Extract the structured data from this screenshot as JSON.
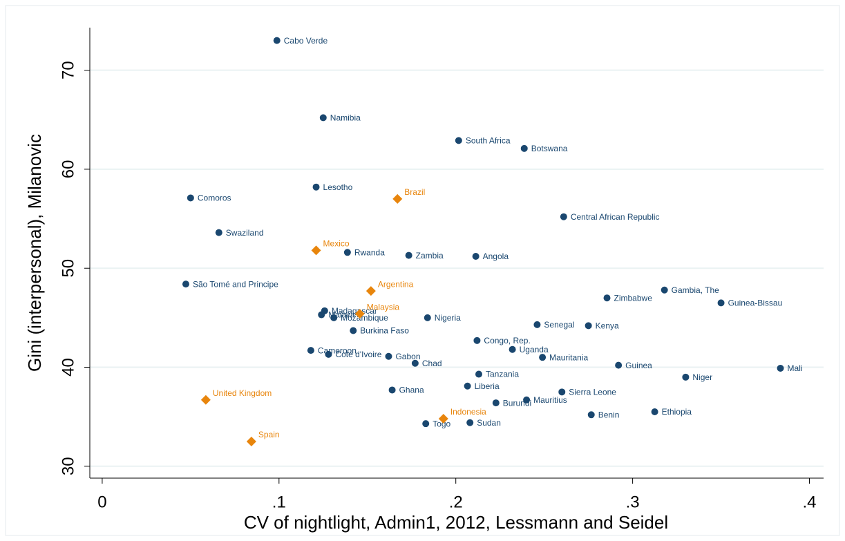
{
  "chart_data": {
    "type": "scatter",
    "x_label": "CV of nightlight, Admin1, 2012, Lessmann and Seidel",
    "y_label": "Gini (interpersonal), Milanovic",
    "xlim": [
      -0.007,
      0.408
    ],
    "ylim": [
      28.8,
      74.3
    ],
    "xticks": [
      0,
      {
        "value": 0.1,
        "label": ".1"
      },
      {
        "value": 0.2,
        "label": ".2"
      },
      {
        "value": 0.3,
        "label": ".3"
      },
      {
        "value": 0.4,
        "label": ".4"
      }
    ],
    "yticks": [
      30,
      40,
      50,
      60,
      70
    ],
    "grid": true,
    "series": [
      {
        "color": "#1a476f",
        "marker": "circle",
        "labels": [
          "Cabo Verde",
          "Namibia",
          "South Africa",
          "Botswana",
          "Lesotho",
          "Comoros",
          "Central African Republic",
          "Swaziland",
          "Rwanda",
          "Zambia",
          "Angola",
          "São Tomé and Principe",
          "Gambia, The",
          "Zimbabwe",
          "Guinea-Bissau",
          "Madagascar",
          "Malawi",
          "Mozambique",
          "Nigeria",
          "Senegal",
          "Kenya",
          "Burkina Faso",
          "Congo, Rep.",
          "Uganda",
          "Cameroon",
          "Cote d'Ivoire",
          "Gabon",
          "Mauritania",
          "Chad",
          "Guinea",
          "Mali",
          "Tanzania",
          "Niger",
          "Liberia",
          "Ghana",
          "Sierra Leone",
          "Burundi",
          "Mauritius",
          "Benin",
          "Ethiopia",
          "Togo",
          "Sudan"
        ],
        "x": [
          0.0988,
          0.125,
          0.2016,
          0.2387,
          0.121,
          0.05,
          0.261,
          0.066,
          0.1387,
          0.1734,
          0.2113,
          0.0473,
          0.318,
          0.2855,
          0.35,
          0.1258,
          0.124,
          0.131,
          0.184,
          0.246,
          0.275,
          0.142,
          0.212,
          0.232,
          0.118,
          0.128,
          0.162,
          0.249,
          0.177,
          0.292,
          0.3836,
          0.213,
          0.33,
          0.2066,
          0.164,
          0.26,
          0.2227,
          0.24,
          0.2766,
          0.3125,
          0.183,
          0.208
        ],
        "y": [
          73.0,
          65.2,
          62.9,
          62.1,
          58.2,
          57.1,
          55.2,
          53.6,
          51.6,
          51.3,
          51.2,
          48.4,
          47.8,
          47.0,
          46.5,
          45.7,
          45.3,
          45.0,
          45.0,
          44.3,
          44.2,
          43.7,
          42.7,
          41.8,
          41.7,
          41.3,
          41.1,
          41.0,
          40.4,
          40.2,
          39.9,
          39.3,
          39.0,
          38.1,
          37.7,
          37.5,
          36.4,
          36.7,
          35.2,
          35.5,
          34.3,
          34.4
        ]
      },
      {
        "color": "#e8850c",
        "marker": "diamond",
        "labels": [
          "Brazil",
          "Mexico",
          "Argentina",
          "Malaysia",
          "United Kingdom",
          "Indonesia",
          "Spain"
        ],
        "x": [
          0.167,
          0.121,
          0.152,
          0.1457,
          0.0586,
          0.193,
          0.0844
        ],
        "y": [
          57.0,
          51.8,
          47.7,
          45.4,
          36.7,
          34.8,
          32.5
        ]
      }
    ]
  }
}
